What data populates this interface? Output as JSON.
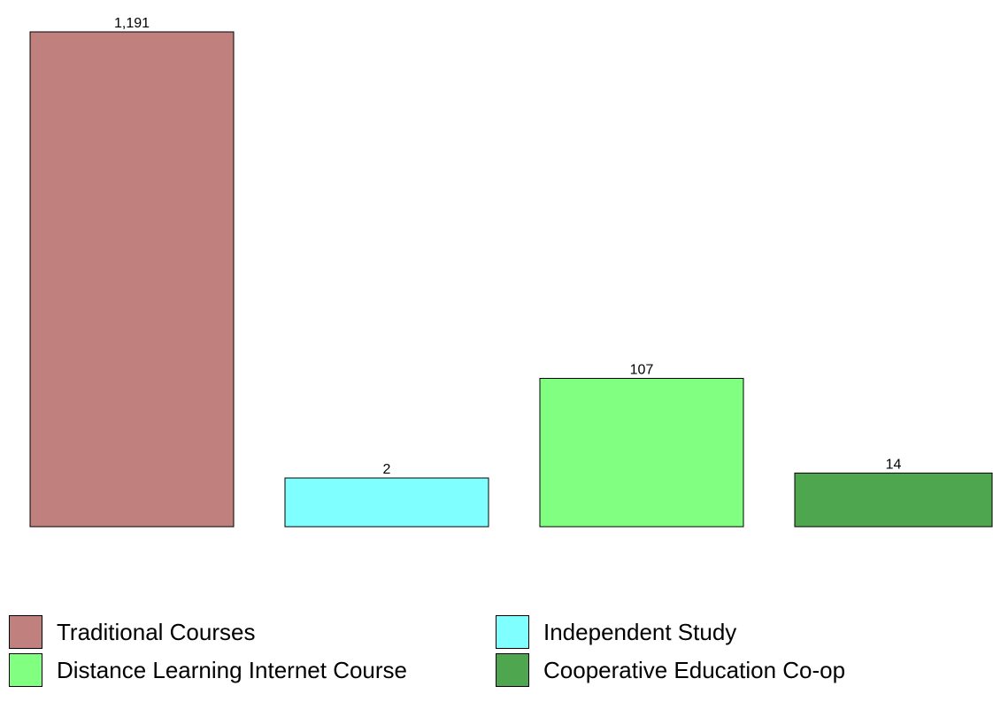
{
  "chart_data": {
    "type": "bar",
    "categories": [
      "Traditional Courses",
      "Independent Study",
      "Distance Learning Internet Course",
      "Cooperative Education Co-op"
    ],
    "values": [
      1191,
      2,
      107,
      14
    ],
    "value_labels": [
      "1,191",
      "2",
      "107",
      "14"
    ],
    "colors": [
      "#c0807e",
      "#7fffff",
      "#80ff80",
      "#4ea64e"
    ],
    "legend": {
      "position": "bottom",
      "entries": [
        {
          "label": "Traditional Courses",
          "color": "#c0807e"
        },
        {
          "label": "Independent Study",
          "color": "#7fffff"
        },
        {
          "label": "Distance Learning Internet Course",
          "color": "#80ff80"
        },
        {
          "label": "Cooperative Education Co-op",
          "color": "#4ea64e"
        }
      ]
    },
    "axes_visible": false,
    "grid": false,
    "title": "",
    "xlabel": "",
    "ylabel": ""
  }
}
